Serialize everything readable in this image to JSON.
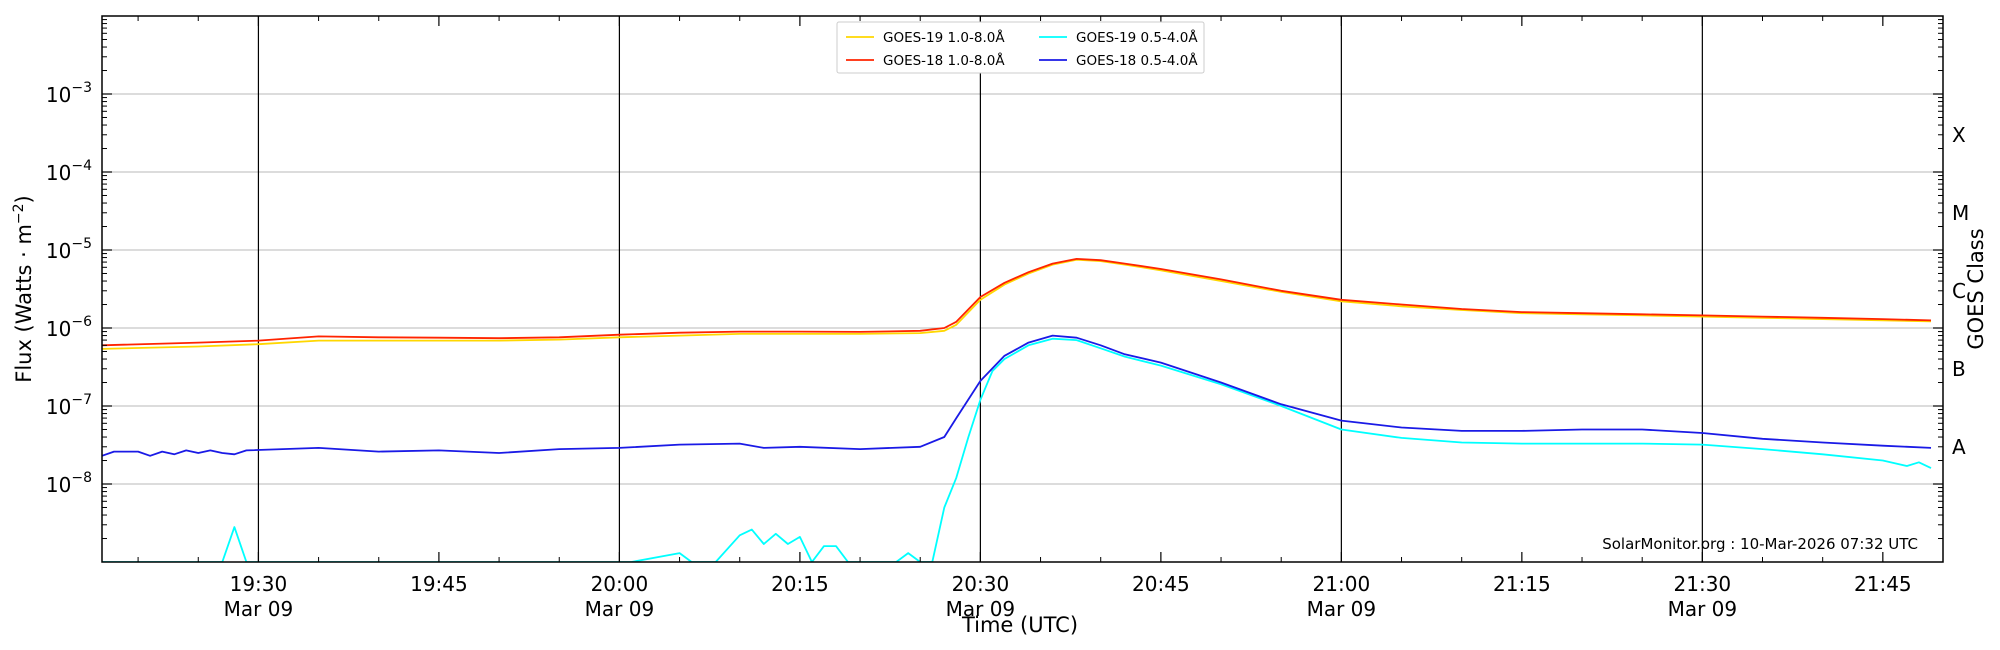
{
  "chart_data": {
    "type": "line",
    "title": "",
    "xlabel": "Time (UTC)",
    "ylabel_main": "Flux (Watts · m",
    "ylabel_sup": "−2",
    "ylabel_tail": ")",
    "right_axis_label": "GOES Class",
    "y_scale": "log",
    "ylim": [
      1e-09,
      0.01
    ],
    "xlim_minutes": [
      "19:17",
      "21:50"
    ],
    "grid": "horizontal at each decade",
    "vertical_lines": [
      "19:30",
      "20:00",
      "20:30",
      "21:00",
      "21:30"
    ],
    "legend_placement": "top-center",
    "credit": "SolarMonitor.org : 10-Mar-2026 07:32 UTC",
    "y_ticks": [
      {
        "value": 0.001,
        "base": "10",
        "exp": "−3"
      },
      {
        "value": 0.0001,
        "base": "10",
        "exp": "−4"
      },
      {
        "value": 1e-05,
        "base": "10",
        "exp": "−5"
      },
      {
        "value": 1e-06,
        "base": "10",
        "exp": "−6"
      },
      {
        "value": 1e-07,
        "base": "10",
        "exp": "−7"
      },
      {
        "value": 1e-08,
        "base": "10",
        "exp": "−8"
      }
    ],
    "x_ticks": [
      {
        "time": "19:30",
        "line1": "19:30",
        "line2": "Mar 09"
      },
      {
        "time": "19:45",
        "line1": "19:45",
        "line2": ""
      },
      {
        "time": "20:00",
        "line1": "20:00",
        "line2": "Mar 09"
      },
      {
        "time": "20:15",
        "line1": "20:15",
        "line2": ""
      },
      {
        "time": "20:30",
        "line1": "20:30",
        "line2": "Mar 09"
      },
      {
        "time": "20:45",
        "line1": "20:45",
        "line2": ""
      },
      {
        "time": "21:00",
        "line1": "21:00",
        "line2": "Mar 09"
      },
      {
        "time": "21:15",
        "line1": "21:15",
        "line2": ""
      },
      {
        "time": "21:30",
        "line1": "21:30",
        "line2": "Mar 09"
      },
      {
        "time": "21:45",
        "line1": "21:45",
        "line2": ""
      }
    ],
    "goes_classes": [
      {
        "label": "X",
        "value": 0.0003
      },
      {
        "label": "M",
        "value": 3e-05
      },
      {
        "label": "C",
        "value": 3e-06
      },
      {
        "label": "B",
        "value": 3e-07
      },
      {
        "label": "A",
        "value": 3e-08
      }
    ],
    "series": [
      {
        "name": "GOES-19 1.0-8.0Å",
        "color": "#ffd700",
        "points": [
          [
            "19:17",
            5.4e-07
          ],
          [
            "19:25",
            5.8e-07
          ],
          [
            "19:30",
            6.2e-07
          ],
          [
            "19:35",
            6.9e-07
          ],
          [
            "19:40",
            6.9e-07
          ],
          [
            "19:45",
            6.9e-07
          ],
          [
            "19:50",
            6.9e-07
          ],
          [
            "19:55",
            7.1e-07
          ],
          [
            "20:00",
            7.6e-07
          ],
          [
            "20:05",
            8e-07
          ],
          [
            "20:10",
            8.4e-07
          ],
          [
            "20:15",
            8.4e-07
          ],
          [
            "20:20",
            8.4e-07
          ],
          [
            "20:25",
            8.6e-07
          ],
          [
            "20:27",
            9.2e-07
          ],
          [
            "20:28",
            1.1e-06
          ],
          [
            "20:30",
            2.3e-06
          ],
          [
            "20:32",
            3.6e-06
          ],
          [
            "20:34",
            5e-06
          ],
          [
            "20:36",
            6.5e-06
          ],
          [
            "20:38",
            7.5e-06
          ],
          [
            "20:40",
            7.2e-06
          ],
          [
            "20:42",
            6.5e-06
          ],
          [
            "20:45",
            5.5e-06
          ],
          [
            "20:50",
            4e-06
          ],
          [
            "20:55",
            2.9e-06
          ],
          [
            "21:00",
            2.2e-06
          ],
          [
            "21:05",
            1.9e-06
          ],
          [
            "21:10",
            1.7e-06
          ],
          [
            "21:15",
            1.55e-06
          ],
          [
            "21:20",
            1.5e-06
          ],
          [
            "21:25",
            1.45e-06
          ],
          [
            "21:30",
            1.4e-06
          ],
          [
            "21:35",
            1.35e-06
          ],
          [
            "21:40",
            1.3e-06
          ],
          [
            "21:45",
            1.25e-06
          ],
          [
            "21:49",
            1.22e-06
          ]
        ]
      },
      {
        "name": "GOES-18 1.0-8.0Å",
        "color": "#ff2400",
        "points": [
          [
            "19:17",
            6e-07
          ],
          [
            "19:25",
            6.5e-07
          ],
          [
            "19:30",
            6.9e-07
          ],
          [
            "19:35",
            7.8e-07
          ],
          [
            "19:40",
            7.6e-07
          ],
          [
            "19:45",
            7.5e-07
          ],
          [
            "19:50",
            7.4e-07
          ],
          [
            "19:55",
            7.6e-07
          ],
          [
            "20:00",
            8.2e-07
          ],
          [
            "20:05",
            8.7e-07
          ],
          [
            "20:10",
            9e-07
          ],
          [
            "20:15",
            9e-07
          ],
          [
            "20:20",
            8.9e-07
          ],
          [
            "20:25",
            9.2e-07
          ],
          [
            "20:27",
            1e-06
          ],
          [
            "20:28",
            1.2e-06
          ],
          [
            "20:30",
            2.5e-06
          ],
          [
            "20:32",
            3.8e-06
          ],
          [
            "20:34",
            5.2e-06
          ],
          [
            "20:36",
            6.7e-06
          ],
          [
            "20:38",
            7.7e-06
          ],
          [
            "20:40",
            7.4e-06
          ],
          [
            "20:42",
            6.7e-06
          ],
          [
            "20:45",
            5.7e-06
          ],
          [
            "20:50",
            4.2e-06
          ],
          [
            "20:55",
            3e-06
          ],
          [
            "21:00",
            2.3e-06
          ],
          [
            "21:05",
            2e-06
          ],
          [
            "21:10",
            1.75e-06
          ],
          [
            "21:15",
            1.6e-06
          ],
          [
            "21:20",
            1.55e-06
          ],
          [
            "21:25",
            1.5e-06
          ],
          [
            "21:30",
            1.45e-06
          ],
          [
            "21:35",
            1.4e-06
          ],
          [
            "21:40",
            1.35e-06
          ],
          [
            "21:45",
            1.3e-06
          ],
          [
            "21:49",
            1.25e-06
          ]
        ]
      },
      {
        "name": "GOES-19 0.5-4.0Å",
        "color": "#00ffff",
        "points": [
          [
            "19:17",
            1e-09
          ],
          [
            "19:27",
            1e-09
          ],
          [
            "19:28",
            2.8e-09
          ],
          [
            "19:29",
            1e-09
          ],
          [
            "20:01",
            1e-09
          ],
          [
            "20:05",
            1.3e-09
          ],
          [
            "20:06",
            1e-09
          ],
          [
            "20:08",
            1e-09
          ],
          [
            "20:10",
            2.2e-09
          ],
          [
            "20:11",
            2.6e-09
          ],
          [
            "20:12",
            1.7e-09
          ],
          [
            "20:13",
            2.3e-09
          ],
          [
            "20:14",
            1.7e-09
          ],
          [
            "20:15",
            2.1e-09
          ],
          [
            "20:16",
            1e-09
          ],
          [
            "20:17",
            1.6e-09
          ],
          [
            "20:18",
            1.6e-09
          ],
          [
            "20:19",
            1e-09
          ],
          [
            "20:23",
            1e-09
          ],
          [
            "20:24",
            1.3e-09
          ],
          [
            "20:25",
            1e-09
          ],
          [
            "20:26",
            1e-09
          ],
          [
            "20:27",
            5e-09
          ],
          [
            "20:28",
            1.2e-08
          ],
          [
            "20:29",
            4e-08
          ],
          [
            "20:30",
            1.2e-07
          ],
          [
            "20:31",
            2.8e-07
          ],
          [
            "20:32",
            4e-07
          ],
          [
            "20:34",
            6e-07
          ],
          [
            "20:36",
            7.3e-07
          ],
          [
            "20:38",
            7e-07
          ],
          [
            "20:40",
            5.5e-07
          ],
          [
            "20:42",
            4.3e-07
          ],
          [
            "20:45",
            3.3e-07
          ],
          [
            "20:50",
            1.9e-07
          ],
          [
            "20:55",
            1e-07
          ],
          [
            "21:00",
            5e-08
          ],
          [
            "21:05",
            3.9e-08
          ],
          [
            "21:10",
            3.4e-08
          ],
          [
            "21:15",
            3.3e-08
          ],
          [
            "21:20",
            3.3e-08
          ],
          [
            "21:25",
            3.3e-08
          ],
          [
            "21:30",
            3.2e-08
          ],
          [
            "21:35",
            2.8e-08
          ],
          [
            "21:40",
            2.4e-08
          ],
          [
            "21:45",
            2e-08
          ],
          [
            "21:47",
            1.7e-08
          ],
          [
            "21:48",
            1.9e-08
          ],
          [
            "21:49",
            1.6e-08
          ]
        ]
      },
      {
        "name": "GOES-18 0.5-4.0Å",
        "color": "#1a1ae6",
        "points": [
          [
            "19:17",
            2.3e-08
          ],
          [
            "19:18",
            2.6e-08
          ],
          [
            "19:20",
            2.6e-08
          ],
          [
            "19:21",
            2.3e-08
          ],
          [
            "19:22",
            2.6e-08
          ],
          [
            "19:23",
            2.4e-08
          ],
          [
            "19:24",
            2.7e-08
          ],
          [
            "19:25",
            2.5e-08
          ],
          [
            "19:26",
            2.7e-08
          ],
          [
            "19:27",
            2.5e-08
          ],
          [
            "19:28",
            2.4e-08
          ],
          [
            "19:29",
            2.7e-08
          ],
          [
            "19:35",
            2.9e-08
          ],
          [
            "19:40",
            2.6e-08
          ],
          [
            "19:45",
            2.7e-08
          ],
          [
            "19:50",
            2.5e-08
          ],
          [
            "19:55",
            2.8e-08
          ],
          [
            "20:00",
            2.9e-08
          ],
          [
            "20:05",
            3.2e-08
          ],
          [
            "20:10",
            3.3e-08
          ],
          [
            "20:12",
            2.9e-08
          ],
          [
            "20:15",
            3e-08
          ],
          [
            "20:20",
            2.8e-08
          ],
          [
            "20:25",
            3e-08
          ],
          [
            "20:27",
            4e-08
          ],
          [
            "20:28",
            7e-08
          ],
          [
            "20:30",
            2.1e-07
          ],
          [
            "20:32",
            4.4e-07
          ],
          [
            "20:34",
            6.5e-07
          ],
          [
            "20:36",
            8e-07
          ],
          [
            "20:38",
            7.5e-07
          ],
          [
            "20:40",
            6e-07
          ],
          [
            "20:42",
            4.6e-07
          ],
          [
            "20:45",
            3.6e-07
          ],
          [
            "20:50",
            2e-07
          ],
          [
            "20:55",
            1.05e-07
          ],
          [
            "21:00",
            6.5e-08
          ],
          [
            "21:05",
            5.3e-08
          ],
          [
            "21:10",
            4.8e-08
          ],
          [
            "21:15",
            4.8e-08
          ],
          [
            "21:20",
            5e-08
          ],
          [
            "21:25",
            5e-08
          ],
          [
            "21:30",
            4.5e-08
          ],
          [
            "21:35",
            3.8e-08
          ],
          [
            "21:40",
            3.4e-08
          ],
          [
            "21:45",
            3.1e-08
          ],
          [
            "21:49",
            2.9e-08
          ]
        ]
      }
    ]
  }
}
